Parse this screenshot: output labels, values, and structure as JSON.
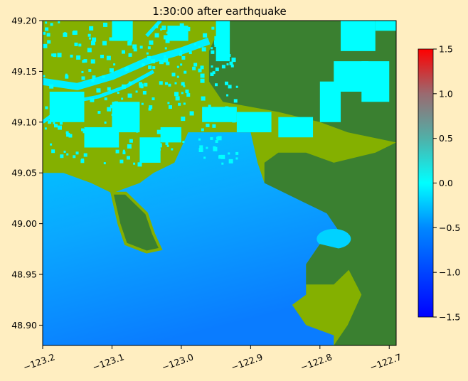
{
  "chart_data": {
    "type": "heatmap",
    "title": "1:30:00 after earthquake",
    "xlabel": "",
    "ylabel": "",
    "xlim": [
      -123.2,
      -122.69
    ],
    "ylim": [
      48.88,
      49.2
    ],
    "x_ticks": [
      {
        "value": -123.2,
        "label": "−123.2"
      },
      {
        "value": -123.1,
        "label": "−123.1"
      },
      {
        "value": -123.0,
        "label": "−123.0"
      },
      {
        "value": -122.9,
        "label": "−122.9"
      },
      {
        "value": -122.8,
        "label": "−122.8"
      },
      {
        "value": -122.7,
        "label": "−122.7"
      }
    ],
    "y_ticks": [
      {
        "value": 49.2,
        "label": "49.20"
      },
      {
        "value": 49.15,
        "label": "49.15"
      },
      {
        "value": 49.1,
        "label": "49.10"
      },
      {
        "value": 49.05,
        "label": "49.05"
      },
      {
        "value": 49.0,
        "label": "49.00"
      },
      {
        "value": 48.95,
        "label": "48.95"
      },
      {
        "value": 48.9,
        "label": "48.90"
      }
    ],
    "colorbar": {
      "vmin": -1.5,
      "vmax": 1.5,
      "ticks": [
        {
          "value": 1.5,
          "label": "1.5"
        },
        {
          "value": 1.0,
          "label": "1.0"
        },
        {
          "value": 0.5,
          "label": "0.5"
        },
        {
          "value": 0.0,
          "label": "0.0"
        },
        {
          "value": -0.5,
          "label": "−0.5"
        },
        {
          "value": -1.0,
          "label": "−1.0"
        },
        {
          "value": -1.5,
          "label": "−1.5"
        }
      ],
      "colors": [
        {
          "value": -1.5,
          "color": "#0000ff"
        },
        {
          "value": -0.5,
          "color": "#0088ff"
        },
        {
          "value": 0.0,
          "color": "#00ffff"
        },
        {
          "value": 0.5,
          "color": "#50b0a8"
        },
        {
          "value": 1.0,
          "color": "#9a6a70"
        },
        {
          "value": 1.5,
          "color": "#ff0000"
        }
      ]
    },
    "land_colors": {
      "lowland": "#84b000",
      "upland": "#3a8030"
    },
    "grid": false,
    "regions": {
      "water": [
        [
          -123.2,
          49.05
        ],
        [
          -123.2,
          48.88
        ],
        [
          -122.78,
          48.88
        ],
        [
          -122.78,
          48.89
        ],
        [
          -122.82,
          48.9
        ],
        [
          -122.84,
          48.92
        ],
        [
          -122.82,
          48.93
        ],
        [
          -122.82,
          48.96
        ],
        [
          -122.8,
          48.98
        ],
        [
          -122.77,
          48.99
        ],
        [
          -122.79,
          49.01
        ],
        [
          -122.82,
          49.02
        ],
        [
          -122.88,
          49.04
        ],
        [
          -122.89,
          49.06
        ],
        [
          -122.9,
          49.09
        ],
        [
          -122.99,
          49.09
        ],
        [
          -123.01,
          49.06
        ],
        [
          -123.04,
          49.05
        ],
        [
          -123.06,
          49.04
        ],
        [
          -123.1,
          49.03
        ],
        [
          -123.13,
          49.04
        ],
        [
          -123.17,
          49.05
        ]
      ],
      "peninsula": [
        [
          -123.1,
          49.03
        ],
        [
          -123.08,
          49.03
        ],
        [
          -123.05,
          49.01
        ],
        [
          -123.04,
          48.99
        ],
        [
          -123.03,
          48.975
        ],
        [
          -123.05,
          48.972
        ],
        [
          -123.08,
          48.98
        ],
        [
          -123.09,
          49.0
        ]
      ],
      "east_upland": [
        [
          -122.88,
          49.06
        ],
        [
          -122.86,
          49.07
        ],
        [
          -122.82,
          49.07
        ],
        [
          -122.78,
          49.06
        ],
        [
          -122.72,
          49.07
        ],
        [
          -122.69,
          49.08
        ],
        [
          -122.69,
          48.88
        ],
        [
          -122.78,
          48.88
        ],
        [
          -122.76,
          48.9
        ],
        [
          -122.74,
          48.93
        ],
        [
          -122.77,
          48.97
        ],
        [
          -122.79,
          49.0
        ],
        [
          -122.82,
          49.02
        ],
        [
          -122.88,
          49.03
        ]
      ],
      "northeast_upland": [
        [
          -122.94,
          49.2
        ],
        [
          -122.69,
          49.2
        ],
        [
          -122.69,
          49.08
        ],
        [
          -122.76,
          49.09
        ],
        [
          -122.8,
          49.1
        ],
        [
          -122.86,
          49.11
        ],
        [
          -122.94,
          49.12
        ],
        [
          -122.96,
          49.14
        ],
        [
          -122.96,
          49.17
        ]
      ],
      "southeast_hill": [
        [
          -122.82,
          48.96
        ],
        [
          -122.8,
          48.98
        ],
        [
          -122.77,
          48.975
        ],
        [
          -122.75,
          48.96
        ],
        [
          -122.78,
          48.94
        ],
        [
          -122.82,
          48.94
        ]
      ],
      "river_channels": [
        [
          [
            -123.2,
            49.14
          ],
          [
            -123.15,
            49.135
          ],
          [
            -123.1,
            49.145
          ],
          [
            -123.05,
            49.16
          ],
          [
            -123.0,
            49.17
          ],
          [
            -122.96,
            49.18
          ]
        ],
        [
          [
            -123.2,
            49.1
          ],
          [
            -123.16,
            49.12
          ],
          [
            -123.12,
            49.125
          ],
          [
            -123.08,
            49.135
          ],
          [
            -123.04,
            49.15
          ]
        ],
        [
          [
            -123.05,
            49.185
          ],
          [
            -123.03,
            49.2
          ]
        ]
      ],
      "flood_patches": [
        [
          -123.19,
          49.1,
          0.05,
          0.03
        ],
        [
          -123.14,
          49.075,
          0.05,
          0.02
        ],
        [
          -123.1,
          49.09,
          0.04,
          0.03
        ],
        [
          -123.06,
          49.06,
          0.03,
          0.025
        ],
        [
          -123.03,
          49.08,
          0.03,
          0.015
        ],
        [
          -122.97,
          49.1,
          0.05,
          0.015
        ],
        [
          -122.92,
          49.09,
          0.05,
          0.02
        ],
        [
          -122.86,
          49.085,
          0.05,
          0.02
        ],
        [
          -122.8,
          49.1,
          0.03,
          0.04
        ],
        [
          -122.78,
          49.13,
          0.05,
          0.03
        ],
        [
          -122.74,
          49.12,
          0.04,
          0.04
        ],
        [
          -122.77,
          49.17,
          0.05,
          0.03
        ],
        [
          -123.1,
          49.18,
          0.03,
          0.02
        ],
        [
          -123.02,
          49.18,
          0.03,
          0.015
        ],
        [
          -122.95,
          49.16,
          0.02,
          0.04
        ],
        [
          -122.72,
          49.19,
          0.03,
          0.01
        ]
      ]
    }
  }
}
